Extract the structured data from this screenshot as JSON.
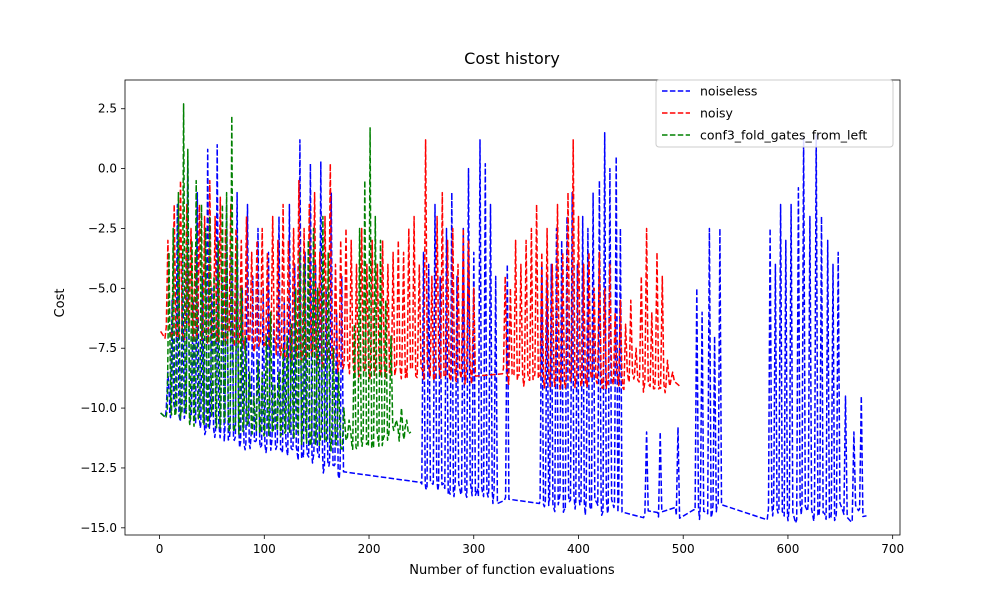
{
  "chart_data": {
    "type": "line",
    "title": "Cost history",
    "xlabel": "Number of function evaluations",
    "ylabel": "Cost",
    "xlim": [
      -33,
      707
    ],
    "ylim": [
      -15.3,
      3.7
    ],
    "xticks": [
      0,
      100,
      200,
      300,
      400,
      500,
      600,
      700
    ],
    "xtick_labels": [
      "0",
      "100",
      "200",
      "300",
      "400",
      "500",
      "600",
      "700"
    ],
    "yticks": [
      -15,
      -12.5,
      -10,
      -7.5,
      -5,
      -2.5,
      0,
      2.5
    ],
    "ytick_labels": [
      "−15.0",
      "−12.5",
      "−10.0",
      "−7.5",
      "−5.0",
      "−2.5",
      "0.0",
      "2.5"
    ],
    "grid": false,
    "legend_position": "upper-right",
    "series": [
      {
        "name": "noiseless",
        "color": "#0000ff",
        "linestyle": "dashed",
        "n_points": 675,
        "start": [
          1,
          -10.2
        ],
        "end": [
          675,
          -14.5
        ],
        "baseline": [
          [
            0,
            -10.2
          ],
          [
            25,
            -10.4
          ],
          [
            50,
            -11
          ],
          [
            75,
            -11.3
          ],
          [
            100,
            -11.7
          ],
          [
            125,
            -11.9
          ],
          [
            150,
            -12.2
          ],
          [
            175,
            -12.8
          ],
          [
            200,
            -13
          ],
          [
            250,
            -13.2
          ],
          [
            300,
            -13.6
          ],
          [
            350,
            -14
          ],
          [
            400,
            -14.2
          ],
          [
            450,
            -14.3
          ],
          [
            500,
            -14.4
          ],
          [
            550,
            -14.45
          ],
          [
            600,
            -14.5
          ],
          [
            675,
            -14.5
          ]
        ],
        "peaks": [
          [
            8,
            -8.5
          ],
          [
            12,
            -5.5
          ],
          [
            17,
            -1.5
          ],
          [
            22,
            -3.5
          ],
          [
            27,
            0.5
          ],
          [
            32,
            -5.5
          ],
          [
            36,
            -1
          ],
          [
            41,
            -4.5
          ],
          [
            46,
            0.8
          ],
          [
            50,
            -5
          ],
          [
            55,
            1
          ],
          [
            60,
            -4.5
          ],
          [
            64,
            -1.5
          ],
          [
            69,
            -3.5
          ],
          [
            74,
            -1
          ],
          [
            79,
            -5
          ],
          [
            84,
            -1.5
          ],
          [
            89,
            -4.5
          ],
          [
            94,
            -2.5
          ],
          [
            99,
            -5
          ],
          [
            104,
            -3.5
          ],
          [
            109,
            -6.5
          ],
          [
            114,
            -2
          ],
          [
            119,
            -5.5
          ],
          [
            124,
            -1.5
          ],
          [
            129,
            -4
          ],
          [
            134,
            1.2
          ],
          [
            139,
            -3.5
          ],
          [
            144,
            0.2
          ],
          [
            149,
            -4
          ],
          [
            154,
            0.3
          ],
          [
            159,
            -5
          ],
          [
            164,
            -1
          ],
          [
            169,
            -6
          ],
          [
            174,
            -4.5
          ],
          [
            252,
            -3.5
          ],
          [
            257,
            -4
          ],
          [
            263,
            -1.5
          ],
          [
            268,
            -4.5
          ],
          [
            274,
            -2.5
          ],
          [
            279,
            -1
          ],
          [
            284,
            -4.5
          ],
          [
            290,
            -2.5
          ],
          [
            295,
            0
          ],
          [
            300,
            -3.5
          ],
          [
            306,
            1.2
          ],
          [
            311,
            0.2
          ],
          [
            316,
            -1.5
          ],
          [
            321,
            -4.5
          ],
          [
            332,
            -4
          ],
          [
            365,
            -4
          ],
          [
            370,
            -4.5
          ],
          [
            374,
            -4
          ],
          [
            379,
            -2.5
          ],
          [
            384,
            -3
          ],
          [
            389,
            -2
          ],
          [
            394,
            -1
          ],
          [
            399,
            -4
          ],
          [
            404,
            -2
          ],
          [
            409,
            -2.5
          ],
          [
            414,
            -1
          ],
          [
            420,
            -0.5
          ],
          [
            425,
            1.5
          ],
          [
            430,
            0
          ],
          [
            436,
            0.5
          ],
          [
            440,
            -2.5
          ],
          [
            465,
            -11
          ],
          [
            478,
            -11
          ],
          [
            495,
            -10.8
          ],
          [
            513,
            -5
          ],
          [
            518,
            -6
          ],
          [
            525,
            -2.5
          ],
          [
            530,
            -7
          ],
          [
            535,
            -2.5
          ],
          [
            583,
            -2.5
          ],
          [
            588,
            -4
          ],
          [
            593,
            -1.5
          ],
          [
            598,
            -3
          ],
          [
            603,
            -1.5
          ],
          [
            610,
            -0.8
          ],
          [
            615,
            1.3
          ],
          [
            621,
            -2
          ],
          [
            627,
            1.4
          ],
          [
            632,
            -2
          ],
          [
            638,
            -3
          ],
          [
            643,
            -4
          ],
          [
            648,
            -3.5
          ],
          [
            655,
            -9.5
          ],
          [
            663,
            -11
          ],
          [
            670,
            -9.5
          ]
        ]
      },
      {
        "name": "noisy",
        "color": "#ff0000",
        "linestyle": "dashed",
        "n_points": 497,
        "start": [
          1,
          -6.8
        ],
        "end": [
          497,
          -9.1
        ],
        "baseline": [
          [
            0,
            -6.8
          ],
          [
            50,
            -7
          ],
          [
            100,
            -7.5
          ],
          [
            150,
            -8
          ],
          [
            200,
            -8.5
          ],
          [
            250,
            -8.6
          ],
          [
            300,
            -8.8
          ],
          [
            350,
            -8.9
          ],
          [
            400,
            -9
          ],
          [
            450,
            -9
          ],
          [
            497,
            -9.1
          ]
        ],
        "peaks": [
          [
            8,
            -3
          ],
          [
            14,
            -1.5
          ],
          [
            20,
            -0.5
          ],
          [
            26,
            -1.5
          ],
          [
            30,
            -2.5
          ],
          [
            34,
            -3.5
          ],
          [
            38,
            -1.5
          ],
          [
            43,
            -2
          ],
          [
            48,
            -0.5
          ],
          [
            53,
            -2
          ],
          [
            58,
            -1.2
          ],
          [
            63,
            -2.5
          ],
          [
            68,
            -1.5
          ],
          [
            73,
            -2.5
          ],
          [
            78,
            -3
          ],
          [
            83,
            -2
          ],
          [
            88,
            -3.5
          ],
          [
            93,
            -3
          ],
          [
            98,
            -2.5
          ],
          [
            103,
            -3.5
          ],
          [
            108,
            -2
          ],
          [
            113,
            -3
          ],
          [
            118,
            -1.5
          ],
          [
            123,
            -3
          ],
          [
            128,
            -2.5
          ],
          [
            133,
            -0.5
          ],
          [
            138,
            -2.5
          ],
          [
            143,
            -1.5
          ],
          [
            148,
            -1
          ],
          [
            153,
            -3.5
          ],
          [
            158,
            -2
          ],
          [
            163,
            0.2
          ],
          [
            168,
            -4
          ],
          [
            173,
            -3
          ],
          [
            178,
            -2.5
          ],
          [
            183,
            -3
          ],
          [
            188,
            -4
          ],
          [
            193,
            -2.5
          ],
          [
            198,
            -4
          ],
          [
            203,
            -3
          ],
          [
            208,
            -4
          ],
          [
            213,
            -3
          ],
          [
            218,
            -4
          ],
          [
            223,
            -3.5
          ],
          [
            228,
            -3
          ],
          [
            233,
            -3.5
          ],
          [
            238,
            -2.5
          ],
          [
            243,
            -2
          ],
          [
            248,
            -4
          ],
          [
            254,
            1.2
          ],
          [
            260,
            -4.5
          ],
          [
            265,
            -2
          ],
          [
            270,
            -1
          ],
          [
            275,
            -3
          ],
          [
            280,
            -2.5
          ],
          [
            285,
            -4
          ],
          [
            290,
            -2.5
          ],
          [
            295,
            -3
          ],
          [
            300,
            -5
          ],
          [
            330,
            -4.5
          ],
          [
            335,
            -5
          ],
          [
            340,
            -3
          ],
          [
            345,
            -4
          ],
          [
            350,
            -3
          ],
          [
            355,
            -2.5
          ],
          [
            360,
            -1.5
          ],
          [
            365,
            -3.5
          ],
          [
            370,
            -2.5
          ],
          [
            375,
            -4
          ],
          [
            380,
            -1.5
          ],
          [
            385,
            -3.5
          ],
          [
            390,
            -1
          ],
          [
            395,
            1.2
          ],
          [
            400,
            -2
          ],
          [
            405,
            -4
          ],
          [
            410,
            -3.5
          ],
          [
            415,
            -5
          ],
          [
            420,
            -3.5
          ],
          [
            425,
            -5
          ],
          [
            430,
            -4
          ],
          [
            435,
            -6
          ],
          [
            440,
            -5.5
          ],
          [
            445,
            -6.5
          ],
          [
            450,
            -5.5
          ],
          [
            455,
            -7.5
          ],
          [
            460,
            -4.5
          ],
          [
            465,
            -2.5
          ],
          [
            470,
            -6
          ],
          [
            475,
            -3.5
          ],
          [
            480,
            -4.5
          ],
          [
            485,
            -8
          ],
          [
            490,
            -8.5
          ]
        ]
      },
      {
        "name": "conf3_fold_gates_from_left",
        "color": "#008000",
        "linestyle": "dashed",
        "n_points": 240,
        "start": [
          1,
          -10.2
        ],
        "end": [
          240,
          -11
        ],
        "baseline": [
          [
            0,
            -10.2
          ],
          [
            40,
            -10.5
          ],
          [
            80,
            -10.8
          ],
          [
            120,
            -11.2
          ],
          [
            160,
            -11.5
          ],
          [
            200,
            -11.5
          ],
          [
            240,
            -11
          ]
        ],
        "peaks": [
          [
            9,
            -3.5
          ],
          [
            13,
            -2.5
          ],
          [
            18,
            -1
          ],
          [
            23,
            2.7
          ],
          [
            27,
            0.8
          ],
          [
            31,
            -3
          ],
          [
            35,
            -0.5
          ],
          [
            40,
            -1.5
          ],
          [
            44,
            -2.5
          ],
          [
            48,
            -2
          ],
          [
            52,
            -4.5
          ],
          [
            56,
            -3
          ],
          [
            60,
            -1.5
          ],
          [
            64,
            -1
          ],
          [
            69,
            2.2
          ],
          [
            74,
            -3
          ],
          [
            78,
            -5
          ],
          [
            82,
            -7
          ],
          [
            86,
            -8.5
          ],
          [
            90,
            -9.5
          ],
          [
            94,
            -8
          ],
          [
            98,
            -8.5
          ],
          [
            102,
            -7
          ],
          [
            106,
            -6
          ],
          [
            110,
            -9
          ],
          [
            114,
            -8.5
          ],
          [
            118,
            -7.5
          ],
          [
            122,
            -7
          ],
          [
            126,
            -6.5
          ],
          [
            130,
            -5
          ],
          [
            134,
            -3.5
          ],
          [
            138,
            -4
          ],
          [
            142,
            -3
          ],
          [
            147,
            -2.5
          ],
          [
            151,
            -5
          ],
          [
            156,
            -2
          ],
          [
            161,
            -3.5
          ],
          [
            166,
            -7.5
          ],
          [
            171,
            -8.5
          ],
          [
            176,
            -10
          ],
          [
            181,
            -10.5
          ],
          [
            186,
            -6.5
          ],
          [
            191,
            -2.5
          ],
          [
            196,
            -0.5
          ],
          [
            201,
            1.7
          ],
          [
            206,
            -2
          ],
          [
            211,
            -3
          ],
          [
            216,
            -5.5
          ],
          [
            221,
            -7
          ],
          [
            226,
            -10.5
          ],
          [
            231,
            -10
          ],
          [
            236,
            -10.5
          ]
        ]
      }
    ]
  }
}
